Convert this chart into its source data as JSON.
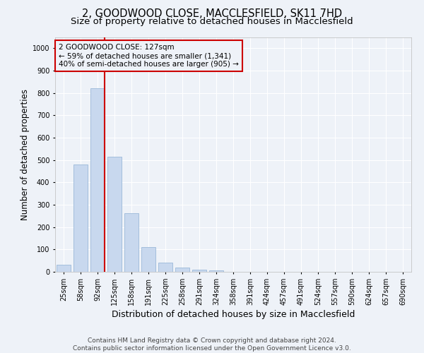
{
  "title_line1": "2, GOODWOOD CLOSE, MACCLESFIELD, SK11 7HD",
  "title_line2": "Size of property relative to detached houses in Macclesfield",
  "xlabel": "Distribution of detached houses by size in Macclesfield",
  "ylabel": "Number of detached properties",
  "footer_line1": "Contains HM Land Registry data © Crown copyright and database right 2024.",
  "footer_line2": "Contains public sector information licensed under the Open Government Licence v3.0.",
  "categories": [
    "25sqm",
    "58sqm",
    "92sqm",
    "125sqm",
    "158sqm",
    "191sqm",
    "225sqm",
    "258sqm",
    "291sqm",
    "324sqm",
    "358sqm",
    "391sqm",
    "424sqm",
    "457sqm",
    "491sqm",
    "524sqm",
    "557sqm",
    "590sqm",
    "624sqm",
    "657sqm",
    "690sqm"
  ],
  "values": [
    32,
    480,
    820,
    515,
    262,
    110,
    40,
    20,
    8,
    5,
    0,
    0,
    0,
    0,
    0,
    0,
    0,
    0,
    0,
    0,
    0
  ],
  "bar_color": "#c8d8ee",
  "bar_edge_color": "#9ab8d8",
  "highlight_bar_index": 2,
  "highlight_line_color": "#cc0000",
  "annotation_box_edge_color": "#cc0000",
  "annotation_text_line1": "2 GOODWOOD CLOSE: 127sqm",
  "annotation_text_line2": "← 59% of detached houses are smaller (1,341)",
  "annotation_text_line3": "40% of semi-detached houses are larger (905) →",
  "ylim": [
    0,
    1050
  ],
  "yticks": [
    0,
    100,
    200,
    300,
    400,
    500,
    600,
    700,
    800,
    900,
    1000
  ],
  "background_color": "#eef2f8",
  "grid_color": "#ffffff",
  "title1_fontsize": 10.5,
  "title2_fontsize": 9.5,
  "ylabel_fontsize": 8.5,
  "xlabel_fontsize": 9,
  "tick_fontsize": 7,
  "annotation_fontsize": 7.5,
  "footer_fontsize": 6.5
}
